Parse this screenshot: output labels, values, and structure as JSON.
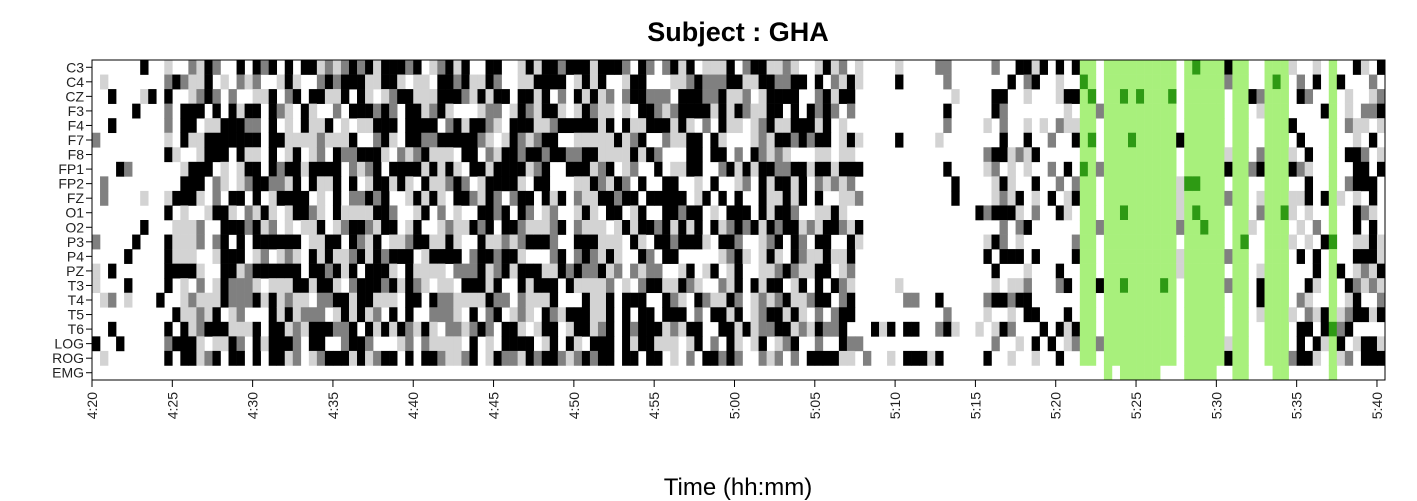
{
  "chart_data": {
    "type": "heatmap",
    "title": "Subject : GHA",
    "xlabel": "Time (hh:mm)",
    "ylabel": "",
    "channels": [
      "C3",
      "C4",
      "CZ",
      "F3",
      "F4",
      "F7",
      "F8",
      "FP1",
      "FP2",
      "FZ",
      "O1",
      "O2",
      "P3",
      "P4",
      "PZ",
      "T3",
      "T4",
      "T5",
      "T6",
      "LOG",
      "ROG",
      "EMG"
    ],
    "x_ticks": [
      "4:20",
      "4:25",
      "4:30",
      "4:35",
      "4:40",
      "4:45",
      "4:50",
      "4:55",
      "5:00",
      "5:05",
      "5:10",
      "5:15",
      "5:20",
      "5:25",
      "5:30",
      "5:35",
      "5:40"
    ],
    "x_range_minutes": [
      260,
      340.5
    ],
    "time_step_minutes": 0.5,
    "grayscale_levels": [
      "#ffffff",
      "#d3d3d3",
      "#808080",
      "#000000"
    ],
    "highlight_colors": {
      "light_green": "#a8f07c",
      "dark_green": "#2e9a14"
    },
    "highlight_bands_minutes": [
      [
        321.5,
        322.5
      ],
      [
        323,
        327.5
      ],
      [
        328,
        330.5
      ],
      [
        331,
        332
      ],
      [
        333,
        334.5
      ],
      [
        337,
        337.5
      ]
    ],
    "segments": [
      {
        "start": 260,
        "end": 264.5,
        "description": "sparse activity"
      },
      {
        "start": 264.5,
        "end": 308,
        "description": "dense black/gray activity"
      },
      {
        "start": 308,
        "end": 315.5,
        "description": "mostly white, sparse in T6 / ROG rows"
      },
      {
        "start": 315.5,
        "end": 321.5,
        "description": "moderate activity"
      },
      {
        "start": 321.5,
        "end": 334.5,
        "description": "green highlighted region"
      },
      {
        "start": 334.5,
        "end": 340.5,
        "description": "mixed activity"
      }
    ]
  }
}
